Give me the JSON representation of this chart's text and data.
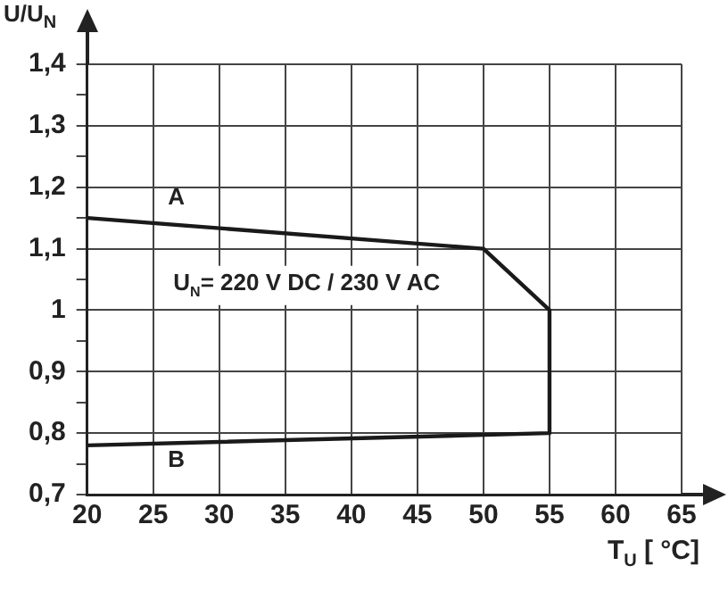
{
  "chart_data": {
    "type": "line",
    "xlabel": "T$_{U}$ [ °C]",
    "ylabel": "U/U$_{N}$",
    "series": [
      {
        "color": "#1a1a1a",
        "x": [
          20,
          50,
          55,
          55,
          20
        ],
        "values": [
          1.15,
          1.1,
          1.0,
          0.8,
          0.78
        ]
      }
    ],
    "xlim": [
      20,
      65
    ],
    "xticks": [
      20,
      25,
      30,
      35,
      40,
      45,
      50,
      55,
      60,
      65
    ],
    "ylim": [
      0.7,
      1.4
    ],
    "yticks": [
      {
        "value": 0.7,
        "label": "0,7"
      },
      {
        "value": 0.75,
        "label": null
      },
      {
        "value": 0.8,
        "label": "0,8"
      },
      {
        "value": 0.85,
        "label": null
      },
      {
        "value": 0.9,
        "label": "0,9"
      },
      {
        "value": 0.95,
        "label": null
      },
      {
        "value": 1,
        "label": "1"
      },
      {
        "value": 1.05,
        "label": null
      },
      {
        "value": 1.1,
        "label": "1,1"
      },
      {
        "value": 1.15,
        "label": null
      },
      {
        "value": 1.2,
        "label": "1,2"
      },
      {
        "value": 1.25,
        "label": null
      },
      {
        "value": 1.3,
        "label": "1,3"
      },
      {
        "value": 1.35,
        "label": null
      },
      {
        "value": 1.4,
        "label": "1,4"
      }
    ],
    "annotations": [
      "A",
      "B",
      "U$_{N}$= 220 V DC / 230 V AC"
    ],
    "grid": true,
    "legend": false,
    "marker": "none",
    "line_style": "solid"
  }
}
